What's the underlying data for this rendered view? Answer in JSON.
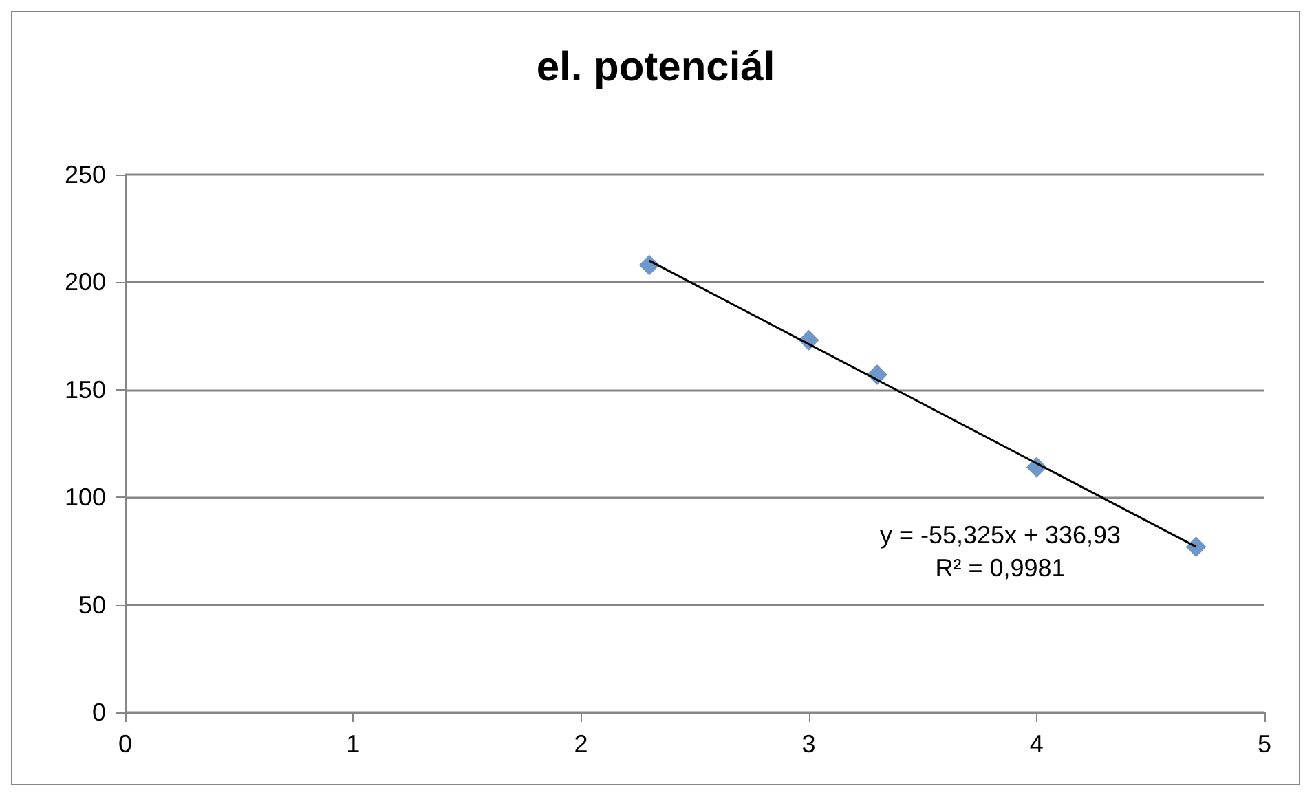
{
  "chart_data": {
    "type": "scatter",
    "title": "el. potenciál",
    "x": [
      2.3,
      3,
      3.3,
      4,
      4.7
    ],
    "series": [
      {
        "color": "#4a7ebb",
        "values": [
          208,
          173,
          157,
          114,
          77
        ],
        "marker": "diamond"
      },
      {
        "type": "line",
        "color": "#000000",
        "x": [
          2.3,
          4.7
        ],
        "values": [
          210,
          77
        ],
        "marker": "none",
        "line_style": "solid"
      }
    ],
    "xlim": [
      0,
      5
    ],
    "xticks": [
      0,
      1,
      2,
      3,
      4,
      5
    ],
    "ylim": [
      0,
      250
    ],
    "yticks": [
      0,
      50,
      100,
      150,
      200,
      250
    ],
    "grid": "y",
    "annotations": [
      "y = -55,325x + 336,93\nR² = 0,9981"
    ]
  }
}
